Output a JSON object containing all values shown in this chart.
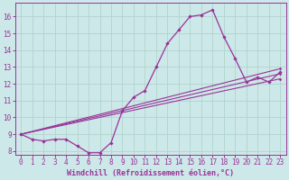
{
  "background_color": "#cde8e8",
  "grid_color": "#b0d4cc",
  "line_color": "#993399",
  "xlim": [
    -0.5,
    23.5
  ],
  "ylim": [
    7.8,
    16.8
  ],
  "xlabel": "Windchill (Refroidissement éolien,°C)",
  "xticks": [
    0,
    1,
    2,
    3,
    4,
    5,
    6,
    7,
    8,
    9,
    10,
    11,
    12,
    13,
    14,
    15,
    16,
    17,
    18,
    19,
    20,
    21,
    22,
    23
  ],
  "yticks": [
    8,
    9,
    10,
    11,
    12,
    13,
    14,
    15,
    16
  ],
  "series_main": {
    "x": [
      0,
      1,
      2,
      3,
      4,
      5,
      6,
      7,
      8,
      9,
      10,
      11,
      12,
      13,
      14,
      15,
      16,
      17,
      18,
      19,
      20,
      21,
      22,
      23
    ],
    "y": [
      9.0,
      8.7,
      8.6,
      8.7,
      8.7,
      8.3,
      7.9,
      7.9,
      8.5,
      10.4,
      11.2,
      11.6,
      13.0,
      14.4,
      15.2,
      16.0,
      16.1,
      16.4,
      14.8,
      13.5,
      12.1,
      12.4,
      12.1,
      12.7
    ]
  },
  "series_lines": [
    {
      "x": [
        0,
        23
      ],
      "y": [
        9.0,
        12.9
      ]
    },
    {
      "x": [
        0,
        23
      ],
      "y": [
        9.0,
        12.6
      ]
    },
    {
      "x": [
        0,
        23
      ],
      "y": [
        9.0,
        12.3
      ]
    }
  ],
  "label_fontsize": 6,
  "tick_fontsize": 5.5
}
